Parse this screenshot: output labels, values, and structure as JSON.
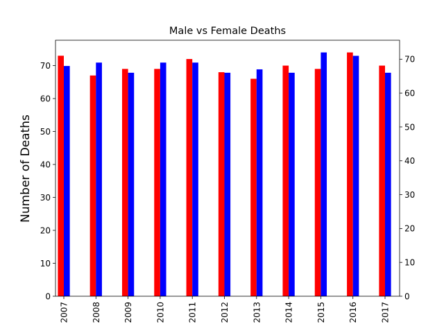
{
  "chart_data": {
    "type": "bar",
    "title": "Male vs Female Deaths",
    "xlabel": "",
    "ylabel": "Number of Deaths",
    "categories": [
      "2007",
      "2008",
      "2009",
      "2010",
      "2011",
      "2012",
      "2013",
      "2014",
      "2015",
      "2016",
      "2017"
    ],
    "series": [
      {
        "values": [
          73,
          67,
          69,
          69,
          72,
          68,
          66,
          70,
          69,
          74,
          70
        ],
        "color": "#ff0000",
        "axis": "left"
      },
      {
        "values": [
          68,
          69,
          66,
          69,
          69,
          66,
          67,
          66,
          72,
          71,
          66
        ],
        "color": "#0000ff",
        "axis": "right"
      }
    ],
    "ylim_left": [
      0,
      77.7
    ],
    "ylim_right": [
      0,
      75.6
    ],
    "yticks_left": [
      0,
      10,
      20,
      30,
      40,
      50,
      60,
      70
    ],
    "yticks_right": [
      0,
      10,
      20,
      30,
      40,
      50,
      60,
      70
    ],
    "grid": false,
    "legend": false
  }
}
